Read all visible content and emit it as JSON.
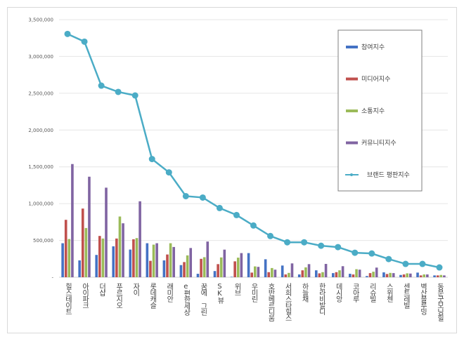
{
  "chart_data": {
    "type": "bar",
    "categories": [
      "힐스테이트",
      "아이파크",
      "더샵",
      "푸르지오",
      "자이",
      "롯데캐슬",
      "래미안",
      "e편한세상",
      "꿈에 그린",
      "SK뷰",
      "위브",
      "우미린",
      "호반베르디움",
      "서희스타힐스",
      "하늘채",
      "한라비발디",
      "데시앙",
      "코아루",
      "리슈빌",
      "스위첸",
      "센트레빌",
      "벽산블루밍",
      "동문굿모닝힐"
    ],
    "series": [
      {
        "name": "참여지수",
        "type": "bar",
        "color": "#4472c4",
        "values": [
          462000,
          229000,
          303000,
          420000,
          376000,
          462000,
          229000,
          165000,
          47000,
          84000,
          6000,
          328000,
          244000,
          159000,
          38000,
          94000,
          56000,
          47000,
          16000,
          66000,
          31000,
          63000,
          25000
        ]
      },
      {
        "name": "미디어지수",
        "type": "bar",
        "color": "#c0504d",
        "values": [
          780000,
          933000,
          561000,
          526000,
          516000,
          223000,
          309000,
          206000,
          250000,
          178000,
          216000,
          63000,
          69000,
          38000,
          94000,
          53000,
          69000,
          38000,
          56000,
          44000,
          38000,
          25000,
          25000
        ]
      },
      {
        "name": "소통지수",
        "type": "bar",
        "color": "#9bbb59",
        "values": [
          519000,
          669000,
          526000,
          825000,
          532000,
          443000,
          462000,
          297000,
          272000,
          269000,
          266000,
          147000,
          125000,
          59000,
          134000,
          69000,
          94000,
          109000,
          75000,
          59000,
          53000,
          38000,
          31000
        ]
      },
      {
        "name": "커뮤니티지수",
        "type": "bar",
        "color": "#8064a2",
        "values": [
          1538000,
          1366000,
          1217000,
          733000,
          1032000,
          462000,
          411000,
          397000,
          485000,
          375000,
          328000,
          141000,
          103000,
          188000,
          178000,
          181000,
          150000,
          103000,
          131000,
          56000,
          50000,
          38000,
          25000
        ]
      },
      {
        "name": "브랜드 평판지수",
        "type": "line",
        "color": "#4bacc6",
        "values": [
          3306000,
          3201000,
          2603000,
          2518000,
          2470000,
          1606000,
          1425000,
          1102000,
          1083000,
          940000,
          845000,
          703000,
          560000,
          475000,
          475000,
          428000,
          409000,
          333000,
          323000,
          247000,
          181000,
          181000,
          133000
        ]
      }
    ],
    "yticks": [
      "-",
      "500,000",
      "1,000,000",
      "1,500,000",
      "2,000,000",
      "2,500,000",
      "3,000,000",
      "3,500,000"
    ],
    "ylim": [
      0,
      3500000
    ],
    "grid": true,
    "legend": "right"
  }
}
